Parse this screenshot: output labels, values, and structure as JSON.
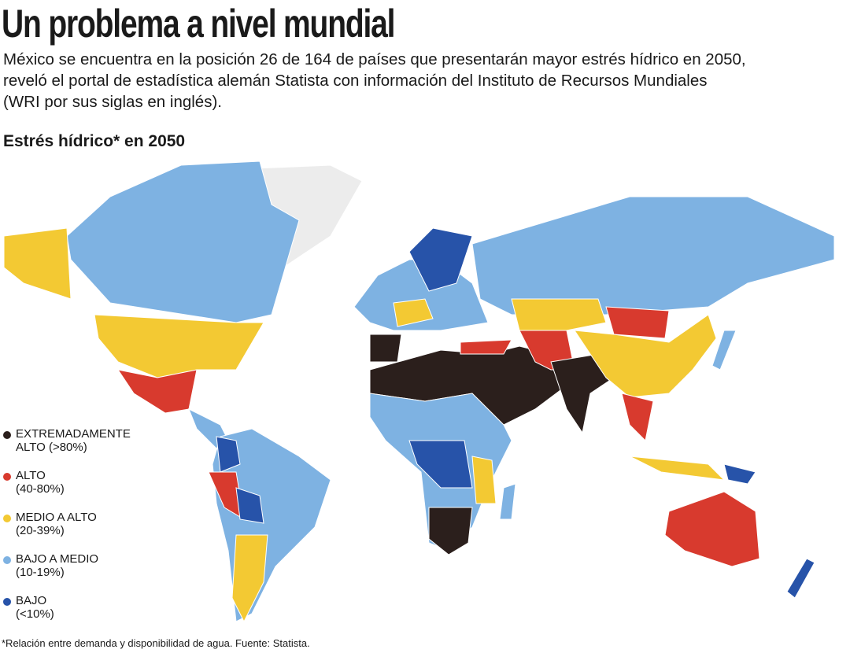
{
  "header": {
    "title": "Un problema a nivel mundial",
    "subtitle": [
      "México se encuentra en la posición 26 de 164 de países que presentarán mayor estrés hídrico en 2050,",
      "reveló el portal de estadística alemán Statista con información del Instituto de Recursos Mundiales",
      "(WRI por sus siglas en inglés)."
    ]
  },
  "map": {
    "title": "Estrés hídrico* en 2050"
  },
  "legend": {
    "items": [
      {
        "lines": [
          "EXTREMADAMENTE",
          "ALTO (>80%)"
        ],
        "color": "#2b1f1c"
      },
      {
        "lines": [
          "ALTO",
          "(40-80%)"
        ],
        "color": "#d83a2e"
      },
      {
        "lines": [
          "MEDIO A ALTO",
          "(20-39%)"
        ],
        "color": "#f3c933"
      },
      {
        "lines": [
          "BAJO A MEDIO",
          "(10-19%)"
        ],
        "color": "#7eb2e2"
      },
      {
        "lines": [
          "BAJO",
          "(<10%)"
        ],
        "color": "#2753a9"
      }
    ]
  },
  "footnote": "*Relación entre demanda y disponibilidad de agua. Fuente: Statista."
}
